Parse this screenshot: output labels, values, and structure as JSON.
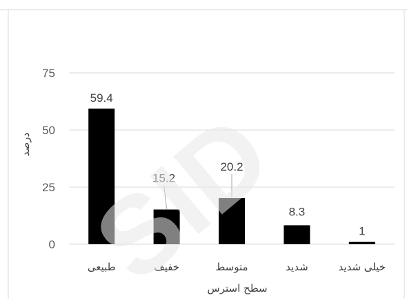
{
  "chart_data": {
    "type": "bar",
    "categories": [
      "طبیعی",
      "خفیف",
      "متوسط",
      "شدید",
      "خیلی شدید"
    ],
    "values": [
      59.4,
      15.2,
      20.2,
      8.3,
      1
    ],
    "value_labels": [
      "59.4",
      "15.2",
      "20.2",
      "8.3",
      "1"
    ],
    "xlabel": "سطح استرس",
    "ylabel": "درصد",
    "yticks": [
      0,
      25,
      50,
      75
    ],
    "ylim": [
      0,
      75
    ],
    "grid": true,
    "bar_color": "#000000",
    "grid_color": "#d9d9d9"
  },
  "watermark": "SID"
}
